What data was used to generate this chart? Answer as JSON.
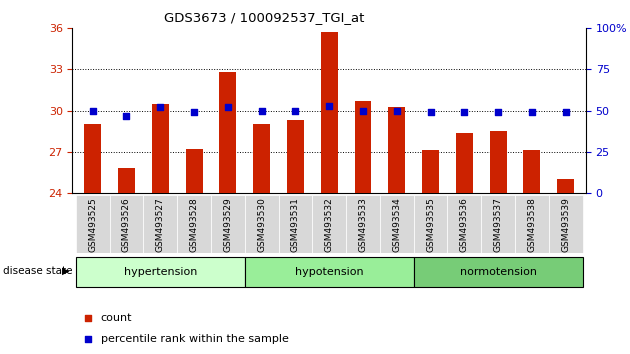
{
  "title": "GDS3673 / 100092537_TGI_at",
  "samples": [
    "GSM493525",
    "GSM493526",
    "GSM493527",
    "GSM493528",
    "GSM493529",
    "GSM493530",
    "GSM493531",
    "GSM493532",
    "GSM493533",
    "GSM493534",
    "GSM493535",
    "GSM493536",
    "GSM493537",
    "GSM493538",
    "GSM493539"
  ],
  "count_values": [
    29.0,
    25.8,
    30.5,
    27.2,
    32.8,
    29.0,
    29.3,
    35.7,
    30.7,
    30.3,
    27.15,
    28.4,
    28.5,
    27.1,
    25.0
  ],
  "percentile_values": [
    50,
    47,
    52,
    49,
    52,
    50,
    50,
    53,
    50,
    50,
    49,
    49,
    49,
    49,
    49
  ],
  "groups": [
    {
      "label": "hypertension",
      "start": 0,
      "end": 5
    },
    {
      "label": "hypotension",
      "start": 5,
      "end": 10
    },
    {
      "label": "normotension",
      "start": 10,
      "end": 15
    }
  ],
  "group_colors": [
    "#ccffcc",
    "#99ee99",
    "#77cc77"
  ],
  "ylim_left": [
    24,
    36
  ],
  "ylim_right": [
    0,
    100
  ],
  "yticks_left": [
    24,
    27,
    30,
    33,
    36
  ],
  "yticks_right": [
    0,
    25,
    50,
    75,
    100
  ],
  "ytick_labels_right": [
    "0",
    "25",
    "50",
    "75",
    "100%"
  ],
  "bar_color": "#cc2200",
  "scatter_color": "#0000cc",
  "bar_width": 0.5,
  "scatter_size": 18,
  "disease_state_label": "disease state"
}
